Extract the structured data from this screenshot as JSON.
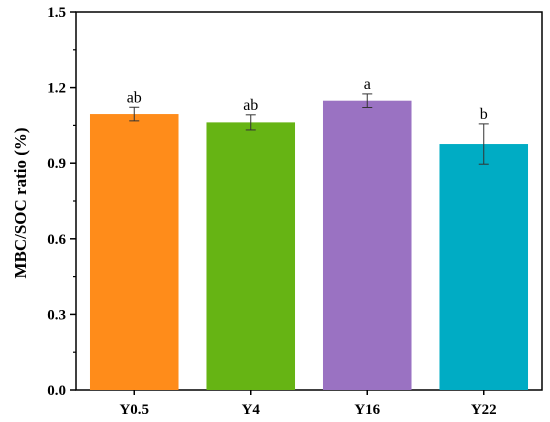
{
  "chart_data": {
    "type": "bar",
    "categories": [
      "Y0.5",
      "Y4",
      "Y16",
      "Y22"
    ],
    "values": [
      1.095,
      1.062,
      1.148,
      0.976
    ],
    "errors": [
      0.027,
      0.03,
      0.027,
      0.08
    ],
    "significance": [
      "ab",
      "ab",
      "a",
      "b"
    ],
    "colors": [
      "#ff8c1a",
      "#66b414",
      "#9a72c2",
      "#00acc4"
    ],
    "ylabel": "MBC/SOC ratio (%)",
    "xlabel": "",
    "ylim": [
      0,
      1.5
    ],
    "yticks": [
      0.0,
      0.3,
      0.6,
      0.9,
      1.2,
      1.5
    ],
    "ytick_labels": [
      "0.0",
      "0.3",
      "0.6",
      "0.9",
      "1.2",
      "1.5"
    ],
    "grid": false,
    "legend": "none"
  }
}
